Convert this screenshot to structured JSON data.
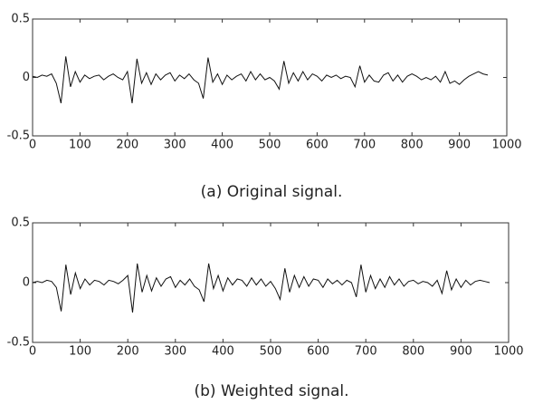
{
  "chart_data": [
    {
      "type": "line",
      "caption": "(a) Original signal.",
      "x": [
        0,
        10,
        20,
        30,
        40,
        50,
        60,
        70,
        80,
        90,
        100,
        110,
        120,
        130,
        140,
        150,
        160,
        170,
        180,
        190,
        200,
        210,
        220,
        230,
        240,
        250,
        260,
        270,
        280,
        290,
        300,
        310,
        320,
        330,
        340,
        350,
        360,
        370,
        380,
        390,
        400,
        410,
        420,
        430,
        440,
        450,
        460,
        470,
        480,
        490,
        500,
        510,
        520,
        530,
        540,
        550,
        560,
        570,
        580,
        590,
        600,
        610,
        620,
        630,
        640,
        650,
        660,
        670,
        680,
        690,
        700,
        710,
        720,
        730,
        740,
        750,
        760,
        770,
        780,
        790,
        800,
        810,
        820,
        830,
        840,
        850,
        860,
        870,
        880,
        890,
        900,
        910,
        920,
        930,
        940,
        950,
        960
      ],
      "series": [
        {
          "color": "#111111",
          "values": [
            0.01,
            0,
            0.02,
            0.01,
            0.03,
            -0.05,
            -0.22,
            0.18,
            -0.08,
            0.05,
            -0.04,
            0.02,
            -0.01,
            0.01,
            0.02,
            -0.02,
            0.01,
            0.03,
            0,
            -0.02,
            0.05,
            -0.22,
            0.16,
            -0.05,
            0.04,
            -0.06,
            0.03,
            -0.02,
            0.02,
            0.04,
            -0.03,
            0.02,
            -0.01,
            0.03,
            -0.02,
            -0.05,
            -0.18,
            0.17,
            -0.04,
            0.03,
            -0.06,
            0.02,
            -0.02,
            0.01,
            0.03,
            -0.03,
            0.05,
            -0.02,
            0.03,
            -0.02,
            0,
            -0.03,
            -0.1,
            0.14,
            -0.05,
            0.04,
            -0.03,
            0.05,
            -0.02,
            0.03,
            0.01,
            -0.03,
            0.02,
            0,
            0.02,
            -0.01,
            0.01,
            0,
            -0.08,
            0.1,
            -0.04,
            0.02,
            -0.03,
            -0.04,
            0.02,
            0.04,
            -0.03,
            0.02,
            -0.04,
            0.01,
            0.03,
            0.01,
            -0.02,
            0,
            -0.02,
            0.01,
            -0.04,
            0.05,
            -0.05,
            -0.03,
            -0.06,
            -0.02,
            0.01,
            0.03,
            0.05,
            0.03,
            0.02
          ]
        }
      ],
      "xlim": [
        0,
        1000
      ],
      "xticks": [
        0,
        100,
        200,
        300,
        400,
        500,
        600,
        700,
        800,
        900,
        1000
      ],
      "ylim": [
        -0.5,
        0.5
      ],
      "yticks": [
        -0.5,
        0,
        0.5
      ]
    },
    {
      "type": "line",
      "caption": "(b) Weighted signal.",
      "x": [
        0,
        10,
        20,
        30,
        40,
        50,
        60,
        70,
        80,
        90,
        100,
        110,
        120,
        130,
        140,
        150,
        160,
        170,
        180,
        190,
        200,
        210,
        220,
        230,
        240,
        250,
        260,
        270,
        280,
        290,
        300,
        310,
        320,
        330,
        340,
        350,
        360,
        370,
        380,
        390,
        400,
        410,
        420,
        430,
        440,
        450,
        460,
        470,
        480,
        490,
        500,
        510,
        520,
        530,
        540,
        550,
        560,
        570,
        580,
        590,
        600,
        610,
        620,
        630,
        640,
        650,
        660,
        670,
        680,
        690,
        700,
        710,
        720,
        730,
        740,
        750,
        760,
        770,
        780,
        790,
        800,
        810,
        820,
        830,
        840,
        850,
        860,
        870,
        880,
        890,
        900,
        910,
        920,
        930,
        940,
        950,
        960
      ],
      "series": [
        {
          "color": "#111111",
          "values": [
            0,
            0.01,
            0,
            0.02,
            0.01,
            -0.04,
            -0.24,
            0.15,
            -0.1,
            0.08,
            -0.05,
            0.03,
            -0.02,
            0.02,
            0.01,
            -0.02,
            0.02,
            0.01,
            -0.01,
            0.02,
            0.06,
            -0.25,
            0.16,
            -0.08,
            0.06,
            -0.07,
            0.04,
            -0.03,
            0.03,
            0.05,
            -0.04,
            0.02,
            -0.02,
            0.03,
            -0.03,
            -0.06,
            -0.16,
            0.16,
            -0.05,
            0.06,
            -0.07,
            0.04,
            -0.02,
            0.03,
            0.02,
            -0.03,
            0.04,
            -0.02,
            0.03,
            -0.03,
            0.01,
            -0.05,
            -0.14,
            0.12,
            -0.08,
            0.06,
            -0.04,
            0.05,
            -0.03,
            0.03,
            0.02,
            -0.04,
            0.03,
            -0.01,
            0.02,
            -0.02,
            0.02,
            0,
            -0.12,
            0.15,
            -0.08,
            0.06,
            -0.05,
            0.03,
            -0.04,
            0.05,
            -0.02,
            0.03,
            -0.03,
            0.01,
            0.02,
            -0.01,
            0.01,
            0,
            -0.03,
            0.02,
            -0.09,
            0.1,
            -0.06,
            0.03,
            -0.04,
            0.02,
            -0.02,
            0.01,
            0.02,
            0.01,
            0
          ]
        }
      ],
      "xlim": [
        0,
        1000
      ],
      "xticks": [
        0,
        100,
        200,
        300,
        400,
        500,
        600,
        700,
        800,
        900,
        1000
      ],
      "ylim": [
        -0.5,
        0.5
      ],
      "yticks": [
        -0.5,
        0,
        0.5
      ]
    }
  ]
}
